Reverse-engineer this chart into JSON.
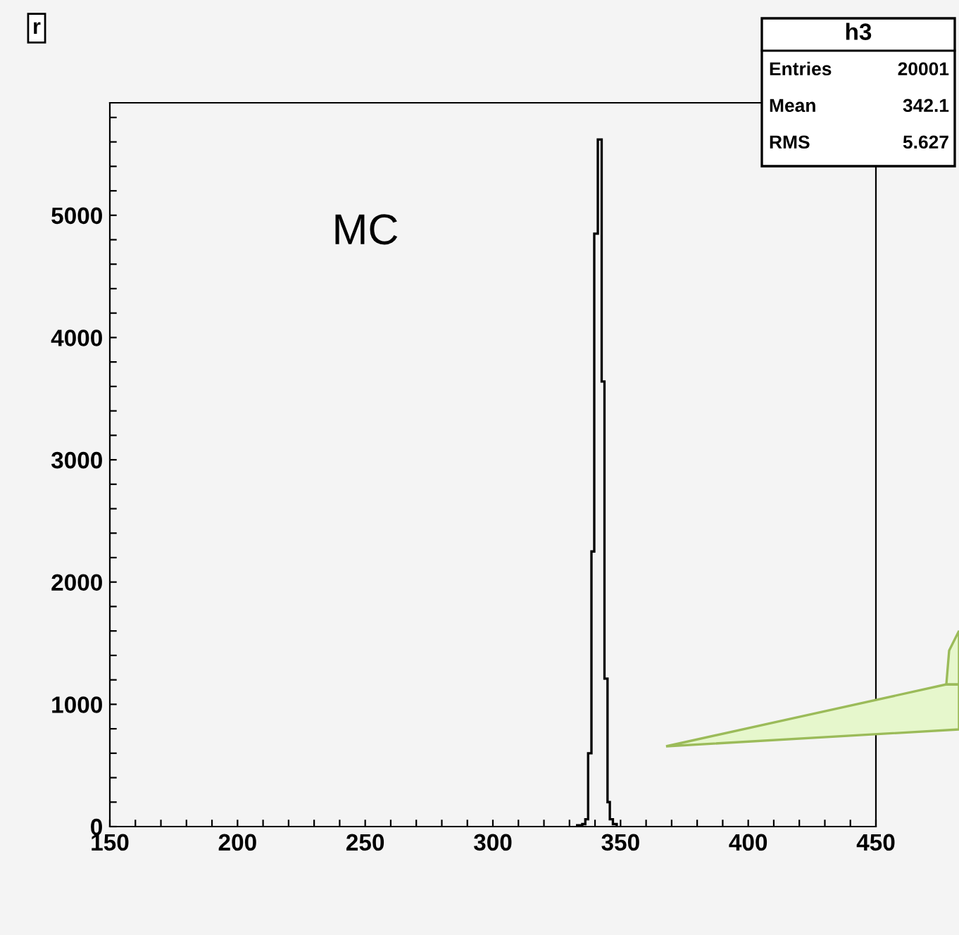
{
  "chart_data": {
    "type": "histogram",
    "title": "r",
    "bins": [
      333,
      335,
      336.2,
      337.3,
      338.6,
      339.7,
      341.1,
      342.6,
      343.7,
      344.9,
      345.8,
      347,
      348.5
    ],
    "values": [
      10,
      20,
      60,
      600,
      2250,
      4850,
      5620,
      3640,
      1210,
      200,
      60,
      20
    ],
    "color": "#000000",
    "xlim": [
      150,
      450
    ],
    "xticks": [
      150,
      {
        "value": 160,
        "label": null
      },
      {
        "value": 170,
        "label": null
      },
      {
        "value": 180,
        "label": null
      },
      {
        "value": 190,
        "label": null
      },
      200,
      {
        "value": 210,
        "label": null
      },
      {
        "value": 220,
        "label": null
      },
      {
        "value": 230,
        "label": null
      },
      {
        "value": 240,
        "label": null
      },
      250,
      {
        "value": 260,
        "label": null
      },
      {
        "value": 270,
        "label": null
      },
      {
        "value": 280,
        "label": null
      },
      {
        "value": 290,
        "label": null
      },
      300,
      {
        "value": 310,
        "label": null
      },
      {
        "value": 320,
        "label": null
      },
      {
        "value": 330,
        "label": null
      },
      {
        "value": 340,
        "label": null
      },
      350,
      {
        "value": 360,
        "label": null
      },
      {
        "value": 370,
        "label": null
      },
      {
        "value": 380,
        "label": null
      },
      {
        "value": 390,
        "label": null
      },
      400,
      {
        "value": 410,
        "label": null
      },
      {
        "value": 420,
        "label": null
      },
      {
        "value": 430,
        "label": null
      },
      {
        "value": 440,
        "label": null
      },
      450
    ],
    "ylim": [
      0,
      5920
    ],
    "yticks": [
      0,
      {
        "value": 200,
        "label": null
      },
      {
        "value": 400,
        "label": null
      },
      {
        "value": 600,
        "label": null
      },
      {
        "value": 800,
        "label": null
      },
      1000,
      {
        "value": 1200,
        "label": null
      },
      {
        "value": 1400,
        "label": null
      },
      {
        "value": 1600,
        "label": null
      },
      {
        "value": 1800,
        "label": null
      },
      2000,
      {
        "value": 2200,
        "label": null
      },
      {
        "value": 2400,
        "label": null
      },
      {
        "value": 2600,
        "label": null
      },
      {
        "value": 2800,
        "label": null
      },
      3000,
      {
        "value": 3200,
        "label": null
      },
      {
        "value": 3400,
        "label": null
      },
      {
        "value": 3600,
        "label": null
      },
      {
        "value": 3800,
        "label": null
      },
      4000,
      {
        "value": 4200,
        "label": null
      },
      {
        "value": 4400,
        "label": null
      },
      {
        "value": 4600,
        "label": null
      },
      {
        "value": 4800,
        "label": null
      },
      5000,
      {
        "value": 5200,
        "label": null
      },
      {
        "value": 5400,
        "label": null
      },
      {
        "value": 5600,
        "label": null
      },
      {
        "value": 5800,
        "label": null
      }
    ],
    "grid": false,
    "annotations": [
      "MC",
      "h3",
      "Entries",
      "20001",
      "Mean",
      "342.1",
      "RMS",
      "5.627"
    ]
  }
}
